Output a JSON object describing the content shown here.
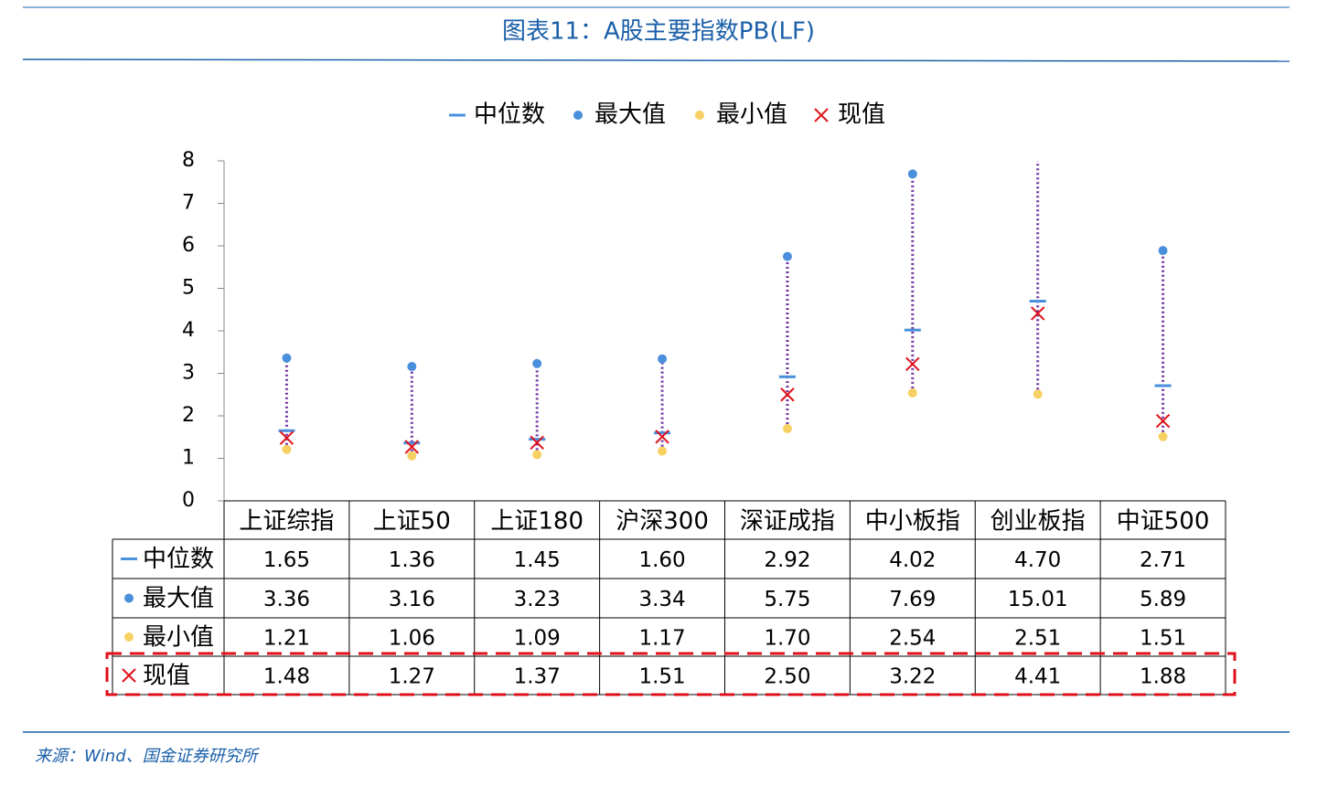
{
  "chart_data": {
    "type": "range-dot",
    "title": "图表11：A股主要指数PB(LF)",
    "categories": [
      "上证综指",
      "上证50",
      "上证180",
      "沪深300",
      "深证成指",
      "中小板指",
      "创业板指",
      "中证500"
    ],
    "series": [
      {
        "name": "中位数",
        "color": "#4a8fdc",
        "marker": "dash",
        "values": [
          1.65,
          1.36,
          1.45,
          1.6,
          2.92,
          4.02,
          4.7,
          2.71
        ],
        "value_labels": [
          "1.65",
          "1.36",
          "1.45",
          "1.60",
          "2.92",
          "4.02",
          "4.70",
          "2.71"
        ]
      },
      {
        "name": "最大值",
        "color": "#4a8fdc",
        "marker": "circle",
        "values": [
          3.36,
          3.16,
          3.23,
          3.34,
          5.75,
          7.69,
          15.01,
          5.89
        ],
        "value_labels": [
          "3.36",
          "3.16",
          "3.23",
          "3.34",
          "5.75",
          "7.69",
          "15.01",
          "5.89"
        ]
      },
      {
        "name": "最小值",
        "color": "#f7d063",
        "marker": "circle",
        "values": [
          1.21,
          1.06,
          1.09,
          1.17,
          1.7,
          2.54,
          2.51,
          1.51
        ],
        "value_labels": [
          "1.21",
          "1.06",
          "1.09",
          "1.17",
          "1.70",
          "2.54",
          "2.51",
          "1.51"
        ]
      },
      {
        "name": "现值",
        "color": "#e0101a",
        "marker": "x",
        "values": [
          1.48,
          1.27,
          1.37,
          1.51,
          2.5,
          3.22,
          4.41,
          1.88
        ],
        "value_labels": [
          "1.48",
          "1.27",
          "1.37",
          "1.51",
          "2.50",
          "3.22",
          "4.41",
          "1.88"
        ]
      }
    ],
    "range_color": "#7030a0",
    "ylim": [
      0,
      8
    ],
    "yticks": [
      0,
      1,
      2,
      3,
      4,
      5,
      6,
      7,
      8
    ]
  },
  "source": "来源：Wind、国金证券研究所"
}
